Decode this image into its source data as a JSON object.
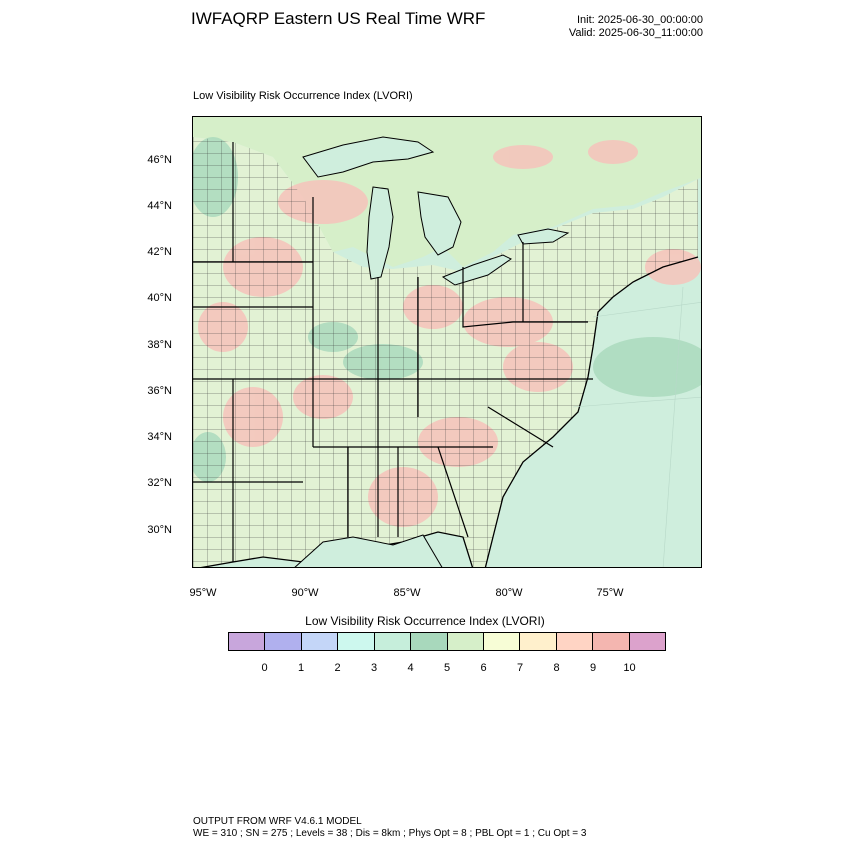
{
  "header": {
    "title": "IWFAQRP Eastern US Real Time WRF",
    "init": "Init: 2025-06-30_00:00:00",
    "valid": "Valid: 2025-06-30_11:00:00"
  },
  "map": {
    "field_title": "Low Visibility Risk Occurrence Index   (LVORI)",
    "lat_labels": [
      "46°N",
      "44°N",
      "42°N",
      "40°N",
      "38°N",
      "36°N",
      "34°N",
      "32°N",
      "30°N"
    ],
    "lon_labels": [
      "95°W",
      "90°W",
      "85°W",
      "80°W",
      "75°W"
    ],
    "colors": {
      "water": "#cfeedd",
      "land_base": "#e2f2d4",
      "coastline": "#000000"
    }
  },
  "legend": {
    "title": "Low Visibility Risk Occurrence Index  (LVORI)",
    "boxes": [
      "#c8a6dc",
      "#b0b0ee",
      "#c4d6f8",
      "#cdf8ee",
      "#c6eedb",
      "#a8d8bc",
      "#d6efc9",
      "#f7fdd6",
      "#fff0cc",
      "#ffd4c4",
      "#f4b6b0",
      "#dca2cc"
    ],
    "labels": [
      "0",
      "1",
      "2",
      "3",
      "4",
      "5",
      "6",
      "7",
      "8",
      "9",
      "10"
    ]
  },
  "footer": {
    "line1": "OUTPUT FROM WRF V4.6.1 MODEL",
    "line2": "WE = 310 ; SN = 275 ; Levels = 38 ; Dis = 8km ; Phys Opt = 8 ; PBL Opt = 1 ; Cu Opt = 3"
  }
}
